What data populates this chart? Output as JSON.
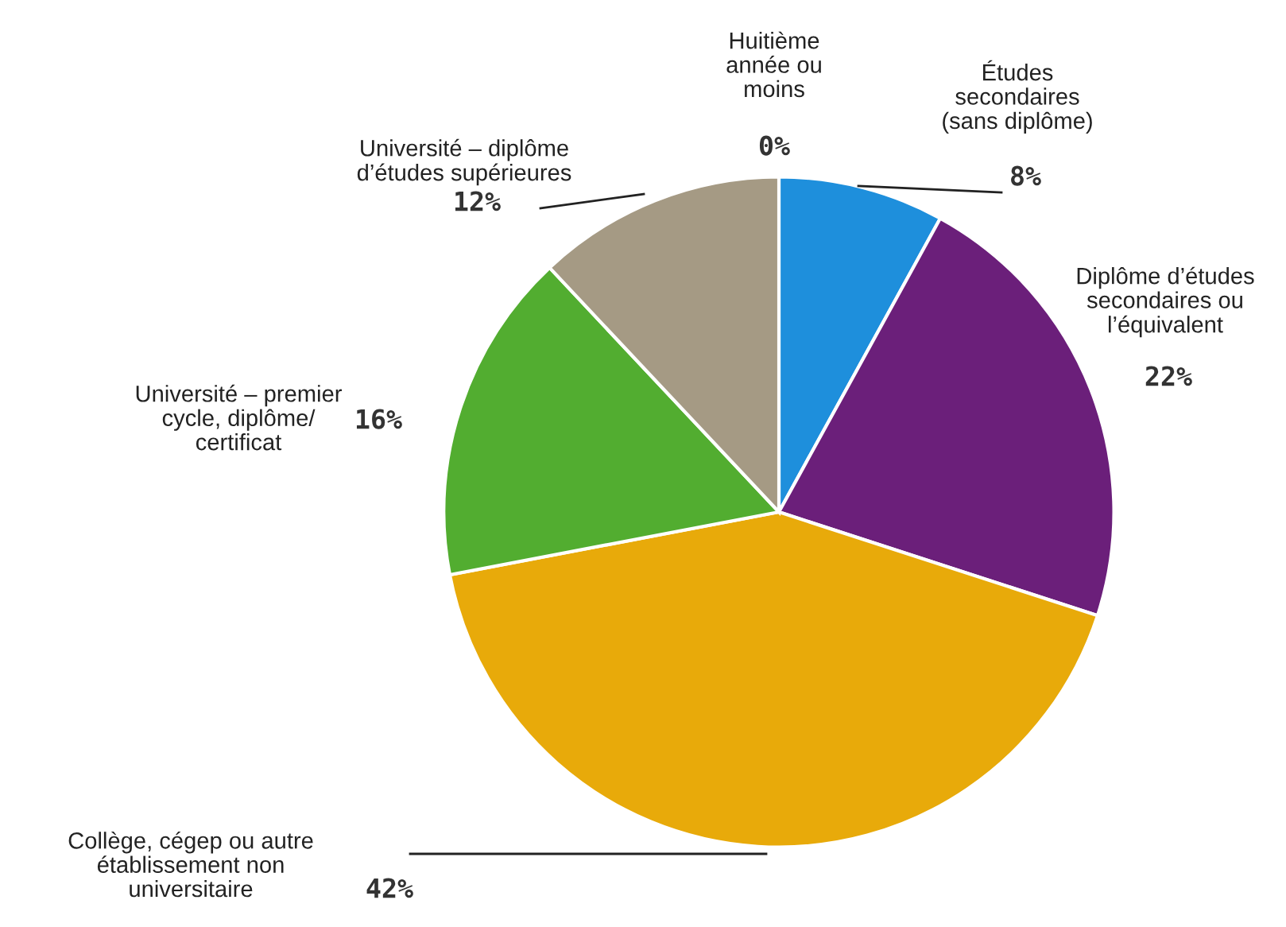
{
  "chart_data": {
    "type": "pie",
    "categories": [
      "Huitième\nannée ou\nmoins",
      "Études\nsecondaires\n(sans diplôme)",
      "Diplôme d’études\nsecondaires ou\nl’équivalent",
      "Collège, cégep ou autre\nétablissement non\nuniversitaire",
      "Université – premier\ncycle, diplôme/\ncertificat",
      "Université – diplôme\nd’études supérieures"
    ],
    "values": [
      0,
      8,
      22,
      42,
      16,
      12
    ],
    "colors": [
      "#2e6fb7",
      "#1e8fdc",
      "#6b1f7a",
      "#e8aa0a",
      "#52ad30",
      "#a59a84"
    ],
    "value_labels": [
      "0%",
      "8%",
      "22%",
      "42%",
      "16%",
      "12%"
    ]
  }
}
